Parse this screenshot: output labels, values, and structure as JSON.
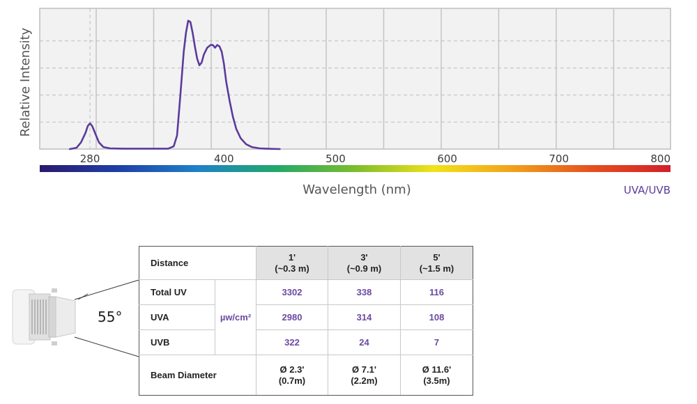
{
  "chart_data": {
    "type": "line",
    "title": "",
    "xlabel": "Wavelength (nm)",
    "ylabel": "Relative Intensity",
    "xlim": [
      235,
      800
    ],
    "ylim": [
      0,
      1.0
    ],
    "x_ticks": [
      280,
      400,
      500,
      600,
      700,
      800
    ],
    "grid": true,
    "legend_placement": "bottom-right",
    "series": [
      {
        "name": "UVA/UVB",
        "color": "#5b3a9c",
        "points": [
          [
            262,
            0.0
          ],
          [
            268,
            0.01
          ],
          [
            272,
            0.05
          ],
          [
            276,
            0.12
          ],
          [
            278,
            0.17
          ],
          [
            280,
            0.19
          ],
          [
            282,
            0.17
          ],
          [
            285,
            0.11
          ],
          [
            288,
            0.05
          ],
          [
            292,
            0.015
          ],
          [
            298,
            0.005
          ],
          [
            310,
            0.003
          ],
          [
            330,
            0.003
          ],
          [
            350,
            0.003
          ],
          [
            355,
            0.02
          ],
          [
            358,
            0.1
          ],
          [
            361,
            0.4
          ],
          [
            364,
            0.72
          ],
          [
            366,
            0.86
          ],
          [
            368,
            0.95
          ],
          [
            370,
            0.94
          ],
          [
            372,
            0.86
          ],
          [
            374,
            0.76
          ],
          [
            376,
            0.67
          ],
          [
            378,
            0.62
          ],
          [
            380,
            0.64
          ],
          [
            382,
            0.7
          ],
          [
            385,
            0.75
          ],
          [
            388,
            0.77
          ],
          [
            390,
            0.77
          ],
          [
            392,
            0.75
          ],
          [
            394,
            0.77
          ],
          [
            396,
            0.76
          ],
          [
            398,
            0.72
          ],
          [
            400,
            0.63
          ],
          [
            402,
            0.5
          ],
          [
            405,
            0.36
          ],
          [
            408,
            0.24
          ],
          [
            411,
            0.15
          ],
          [
            415,
            0.08
          ],
          [
            420,
            0.035
          ],
          [
            425,
            0.015
          ],
          [
            432,
            0.005
          ],
          [
            440,
            0.002
          ],
          [
            450,
            0.0
          ]
        ]
      }
    ]
  },
  "spectrum_bar_colors": [
    "#2a1a6e",
    "#1f3fa8",
    "#1f82c8",
    "#22a86a",
    "#7cbd2c",
    "#f2e21a",
    "#f1a11c",
    "#e5501e",
    "#d21f2a"
  ],
  "fixture": {
    "beam_angle": "55°"
  },
  "table": {
    "distance_label": "Distance",
    "columns": [
      {
        "feet": "1'",
        "meters": "(~0.3 m)"
      },
      {
        "feet": "3'",
        "meters": "(~0.9 m)"
      },
      {
        "feet": "5'",
        "meters": "(~1.5 m)"
      }
    ],
    "unit": "µw/cm²",
    "rows": [
      {
        "label": "Total UV",
        "values": [
          "3302",
          "338",
          "116"
        ]
      },
      {
        "label": "UVA",
        "values": [
          "2980",
          "314",
          "108"
        ]
      },
      {
        "label": "UVB",
        "values": [
          "322",
          "24",
          "7"
        ]
      }
    ],
    "beam": {
      "label": "Beam Diameter",
      "values": [
        {
          "ft": "Ø 2.3'",
          "m": "(0.7m)"
        },
        {
          "ft": "Ø 7.1'",
          "m": "(2.2m)"
        },
        {
          "ft": "Ø 11.6'",
          "m": "(3.5m)"
        }
      ]
    }
  }
}
